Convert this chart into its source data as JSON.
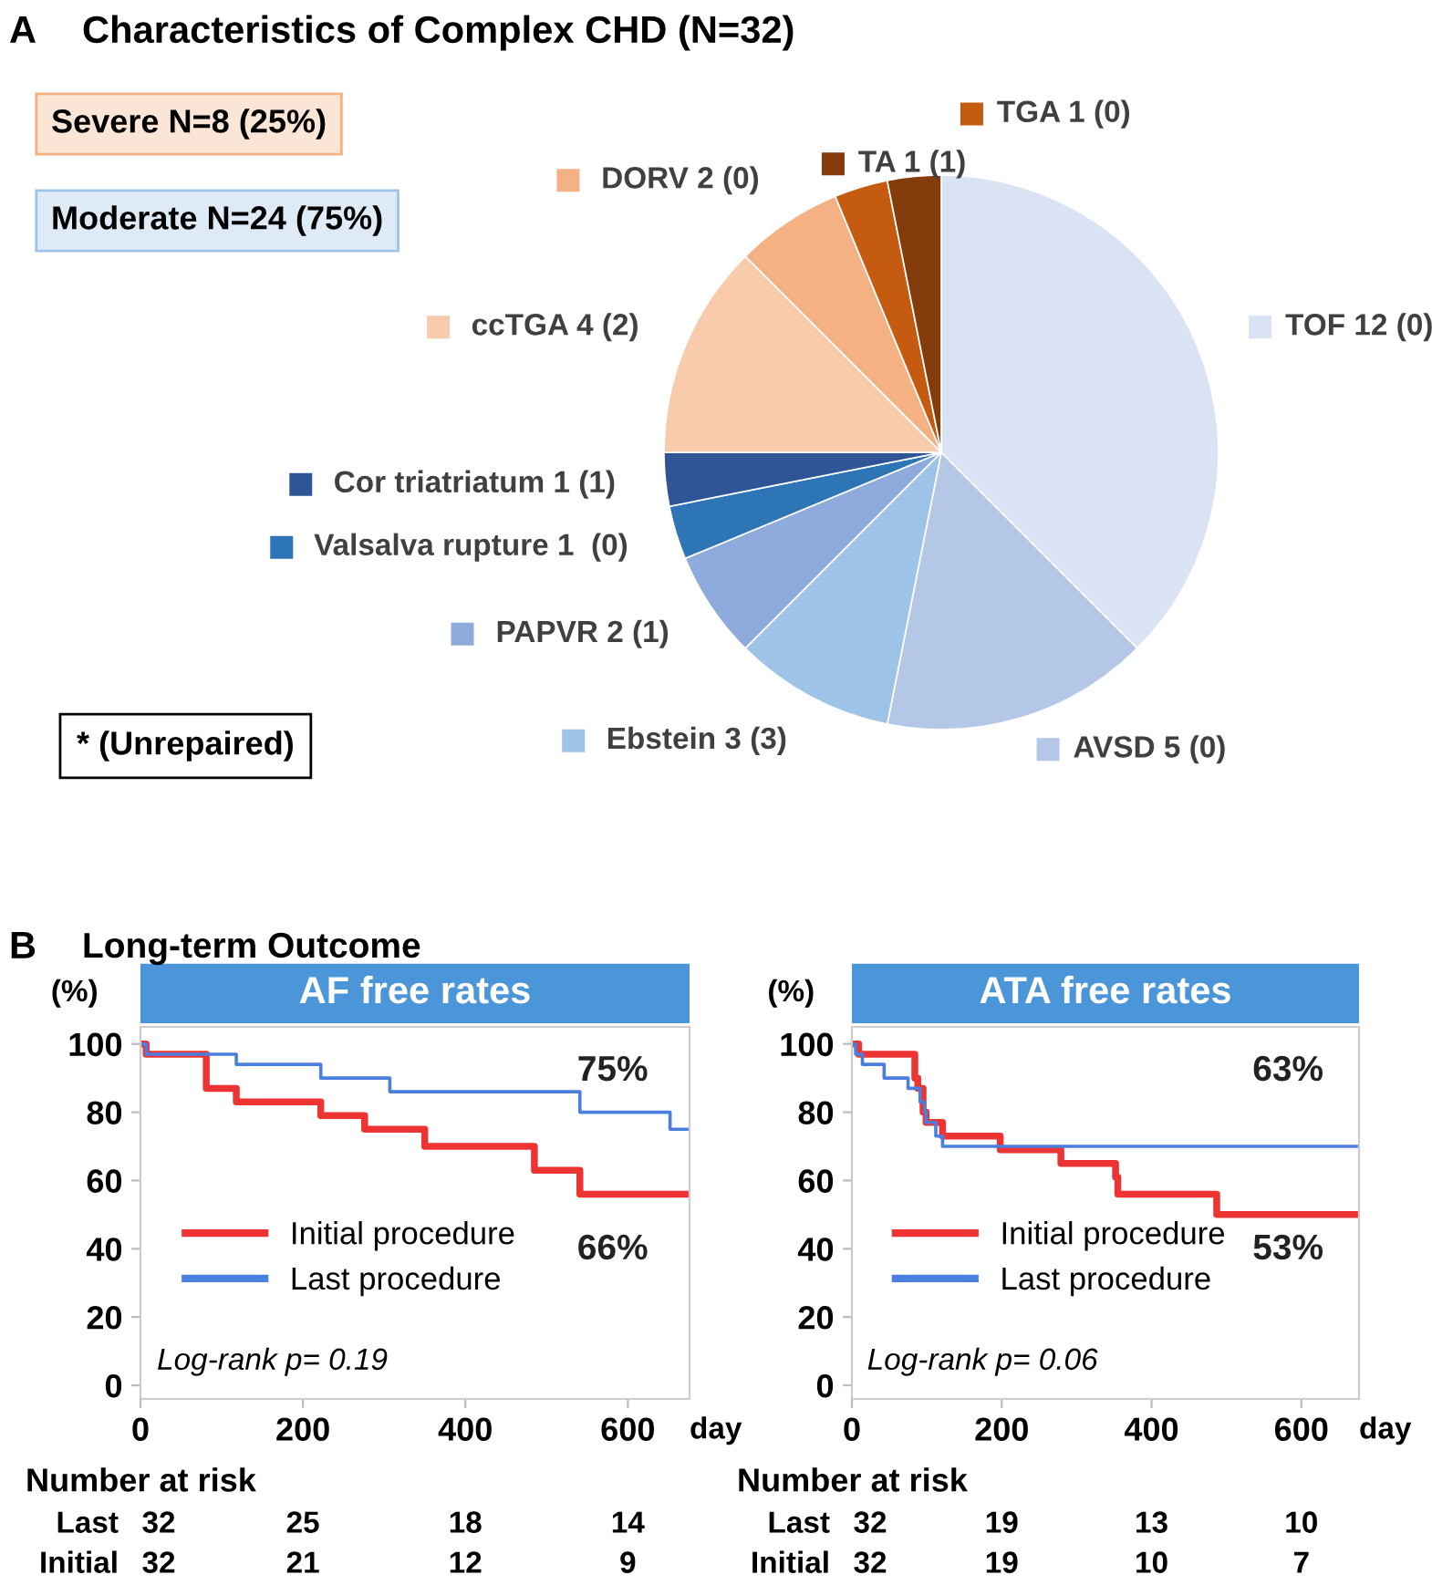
{
  "chart_data": [
    {
      "type": "pie",
      "title": "Characteristics of Complex CHD (N=32)",
      "categories": [
        "TOF 12 (0)",
        "AVSD 5 (0)",
        "Ebstein 3 (3)",
        "PAPVR 2 (1)",
        "Valsalva rupture 1  (0)",
        "Cor triatriatum 1 (1)",
        "ccTGA 4 (2)",
        "DORV 2 (0)",
        "TGA 1 (0)",
        "TA 1 (1)"
      ],
      "values": [
        12,
        5,
        3,
        2,
        1,
        1,
        4,
        2,
        1,
        1
      ],
      "colors": [
        "#dae3f3",
        "#b4c7e7",
        "#9dc3e6",
        "#8faadc",
        "#2e75b6",
        "#2f5597",
        "#f8cbad",
        "#f4b183",
        "#c55a11",
        "#843c0c"
      ],
      "legend": "left",
      "annotations": [
        "A",
        "Severe N=8 (25%)",
        "Moderate N=24 (75%)",
        "* (Unrepaired)",
        "B",
        "Long-term Outcome"
      ]
    },
    {
      "type": "step",
      "title": "AF free rates",
      "xlabel": "day",
      "ylabel": "(%)",
      "xlim": [
        0,
        676
      ],
      "ylim": [
        -4,
        105
      ],
      "xticks": [
        0,
        200,
        400,
        600
      ],
      "yticks": [
        0,
        20,
        40,
        60,
        80,
        100
      ],
      "legend": "bottom left",
      "series": [
        {
          "name": "Initial procedure",
          "color": "#ee3333",
          "x": [
            0,
            7,
            81,
            118,
            222,
            276,
            350,
            485,
            541,
            676
          ],
          "values": [
            100,
            97,
            87,
            83,
            79,
            75,
            70,
            63,
            56,
            56
          ]
        },
        {
          "name": "Last procedure",
          "color": "#4a7fe0",
          "x": [
            0,
            7,
            118,
            222,
            307,
            541,
            652,
            676
          ],
          "values": [
            100,
            97,
            94,
            90,
            86,
            80,
            75,
            75
          ]
        }
      ],
      "annotations": [
        "Log-rank p= 0.19",
        "75%",
        "66%",
        "Number at risk",
        "Last",
        "32",
        "25",
        "18",
        "14",
        "Initial",
        "32",
        "21",
        "12",
        "9"
      ]
    },
    {
      "type": "step",
      "title": "ATA free rates",
      "xlabel": "day",
      "ylabel": "(%)",
      "xlim": [
        0,
        677
      ],
      "ylim": [
        -4,
        105
      ],
      "xticks": [
        0,
        200,
        400,
        600
      ],
      "yticks": [
        0,
        20,
        40,
        60,
        80,
        100
      ],
      "legend": "bottom left",
      "series": [
        {
          "name": "Initial procedure",
          "color": "#ee3333",
          "x": [
            0,
            9,
            84,
            88,
            95,
            99,
            121,
            198,
            279,
            352,
            355,
            487,
            677
          ],
          "values": [
            100,
            97,
            90,
            87,
            80,
            77,
            73,
            69,
            65,
            61,
            56,
            50,
            50
          ]
        },
        {
          "name": "Last procedure",
          "color": "#4a7fe0",
          "x": [
            0,
            5,
            14,
            43,
            75,
            91,
            97,
            99,
            112,
            121,
            677
          ],
          "values": [
            100,
            97,
            94,
            90,
            87,
            83,
            80,
            77,
            73,
            70,
            70
          ]
        }
      ],
      "annotations": [
        "Log-rank p= 0.06",
        "63%",
        "53%",
        "Number at risk",
        "Last",
        "32",
        "19",
        "13",
        "10",
        "Initial",
        "32",
        "19",
        "10",
        "7"
      ]
    }
  ]
}
